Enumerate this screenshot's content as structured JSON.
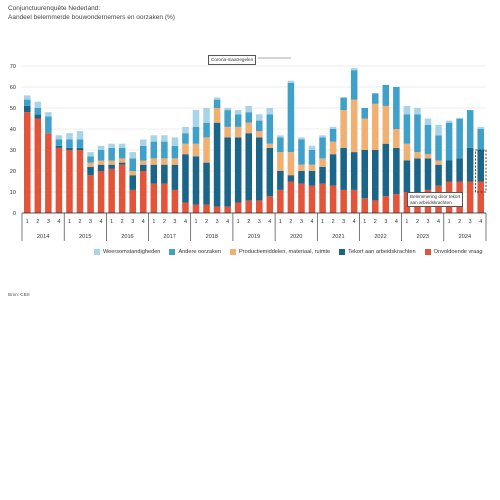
{
  "title": "Conjunctuurenquête Nederland:",
  "subtitle": "Aandeel belemmerde bouwondernemers en oorzaken (%)",
  "source": "Bron: CBS",
  "annotations": {
    "corona": "Corona-maatregelen",
    "labor": [
      "Belemmering door tekort",
      "aan arbeidskrachten"
    ]
  },
  "chart_data": {
    "type": "bar",
    "stacked": true,
    "ylim": [
      0,
      70
    ],
    "yticks": [
      0,
      10,
      20,
      30,
      40,
      50,
      60,
      70
    ],
    "grid": true,
    "legend_position": "bottom",
    "years": [
      "2014",
      "2015",
      "2016",
      "2017",
      "2018",
      "2019",
      "2020",
      "2021",
      "2022",
      "2023",
      "2024"
    ],
    "quarter_labels": [
      "1",
      "2",
      "3",
      "4"
    ],
    "series": [
      {
        "name": "Onvoldoende vraag",
        "color": "#e2553a",
        "values": [
          48,
          45,
          38,
          31,
          30,
          30,
          18,
          20,
          21,
          23,
          11,
          20,
          14,
          14,
          11,
          5,
          4,
          4,
          3,
          3,
          5,
          6,
          6,
          8,
          11,
          15,
          14,
          13,
          14,
          13,
          11,
          11,
          7,
          6,
          8,
          9,
          10,
          9,
          11,
          13,
          15,
          15,
          15,
          15
        ]
      },
      {
        "name": "Tekort aan arbeidskrachten",
        "color": "#1b6688",
        "values": [
          3,
          2,
          0,
          1,
          1,
          1,
          4,
          3,
          2,
          1,
          7,
          3,
          9,
          9,
          12,
          23,
          23,
          20,
          40,
          33,
          31,
          32,
          30,
          23,
          9,
          3,
          6,
          7,
          8,
          15,
          20,
          18,
          23,
          24,
          25,
          22,
          15,
          17,
          15,
          10,
          10,
          11,
          16,
          15
        ]
      },
      {
        "name": "Productiemiddelen, materiaal, ruimte",
        "color": "#f1b072",
        "values": [
          0,
          0,
          0,
          0,
          0,
          0,
          2,
          2,
          2,
          2,
          2,
          2,
          3,
          3,
          3,
          5,
          6,
          12,
          7,
          5,
          5,
          5,
          3,
          2,
          9,
          11,
          3,
          3,
          4,
          6,
          18,
          25,
          15,
          22,
          18,
          9,
          8,
          3,
          2,
          2,
          0,
          0,
          0,
          0
        ]
      },
      {
        "name": "Andere oorzaken",
        "color": "#3fa1c9",
        "values": [
          3,
          3,
          8,
          3,
          4,
          4,
          3,
          5,
          6,
          5,
          6,
          7,
          8,
          8,
          6,
          5,
          8,
          7,
          4,
          8,
          6,
          5,
          5,
          14,
          7,
          33,
          12,
          7,
          10,
          6,
          6,
          14,
          5,
          5,
          10,
          20,
          14,
          18,
          14,
          12,
          18,
          19,
          18,
          10
        ]
      },
      {
        "name": "Weersomstandigheden",
        "color": "#a8d4e8",
        "values": [
          2,
          3,
          2,
          2,
          3,
          4,
          2,
          2,
          2,
          2,
          3,
          3,
          3,
          3,
          4,
          3,
          8,
          7,
          1,
          1,
          2,
          3,
          3,
          3,
          1,
          1,
          1,
          2,
          1,
          1,
          0,
          1,
          0,
          0,
          0,
          0,
          4,
          3,
          3,
          5,
          1,
          0,
          0,
          1
        ]
      }
    ]
  }
}
